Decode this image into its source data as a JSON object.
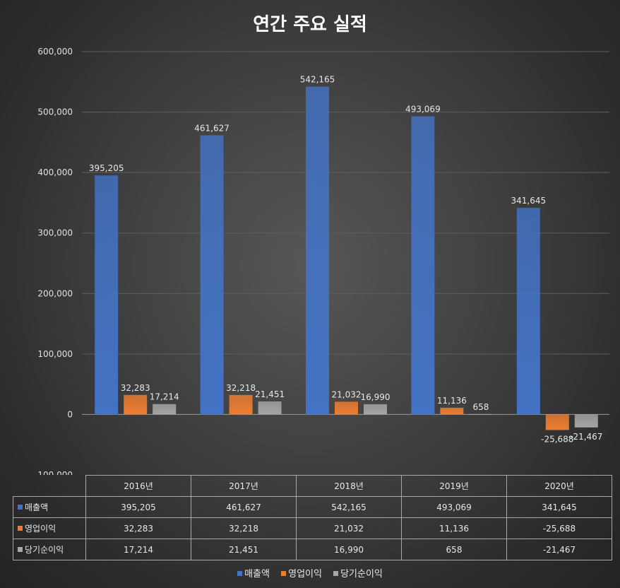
{
  "chart_data": {
    "type": "bar",
    "title": "연간 주요 실적",
    "categories": [
      "2016년",
      "2017년",
      "2018년",
      "2019년",
      "2020년"
    ],
    "series": [
      {
        "name": "매출액",
        "color": "#4472c4",
        "values": [
          395205,
          461627,
          542165,
          493069,
          341645
        ]
      },
      {
        "name": "영업이익",
        "color": "#ed7d31",
        "values": [
          32283,
          32218,
          21032,
          11136,
          -25688
        ]
      },
      {
        "name": "당기순이익",
        "color": "#a5a5a5",
        "values": [
          17214,
          21451,
          16990,
          658,
          -21467
        ]
      }
    ],
    "ylim": [
      -100000,
      600000
    ],
    "yticks": [
      600000,
      500000,
      400000,
      300000,
      200000,
      100000,
      0,
      -100000
    ],
    "ytick_labels": [
      "600,000",
      "500,000",
      "400,000",
      "300,000",
      "200,000",
      "100,000",
      "0",
      "-100,000"
    ],
    "data_labels": [
      [
        "395,205",
        "461,627",
        "542,165",
        "493,069",
        "341,645"
      ],
      [
        "32,283",
        "32,218",
        "21,032",
        "11,136",
        "-25,688"
      ],
      [
        "17,214",
        "21,451",
        "16,990",
        "658",
        "-21,467"
      ]
    ],
    "grid": true,
    "legend": "bottom",
    "data_table": true
  }
}
